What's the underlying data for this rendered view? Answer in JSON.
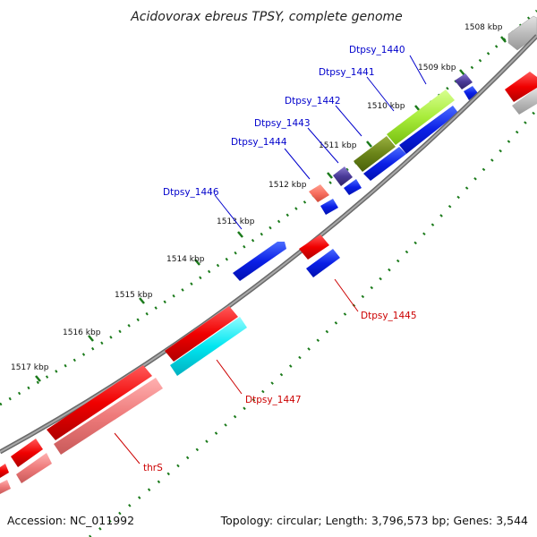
{
  "title": "Acidovorax ebreus TPSY, complete genome",
  "footer": {
    "accession": "Accession: NC_011992",
    "topology": "Topology: circular; Length: 3,796,573 bp; Genes: 3,544"
  },
  "colors": {
    "backbone": "#808080",
    "tick": "#1a7a1a",
    "label_forward": "#0000cc",
    "label_reverse": "#cc0000"
  },
  "kbp_labels": [
    "1508 kbp",
    "1509 kbp",
    "1510 kbp",
    "1511 kbp",
    "1512 kbp",
    "1513 kbp",
    "1514 kbp",
    "1515 kbp",
    "1516 kbp",
    "1517 kbp"
  ],
  "gene_labels": {
    "forward": [
      "Dtpsy_1440",
      "Dtpsy_1441",
      "Dtpsy_1442",
      "Dtpsy_1443",
      "Dtpsy_1444",
      "Dtpsy_1446"
    ],
    "reverse": [
      "Dtpsy_1445",
      "Dtpsy_1447",
      "thrS"
    ]
  }
}
